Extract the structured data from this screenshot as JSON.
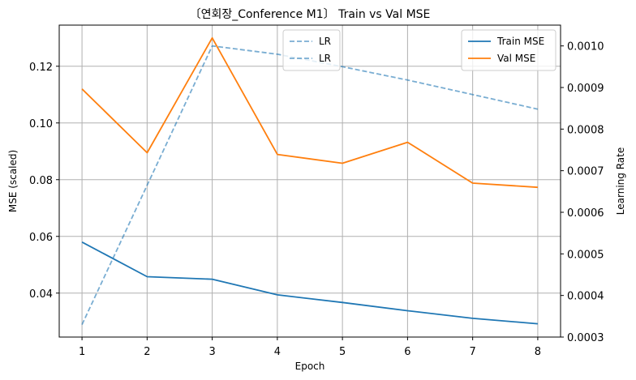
{
  "chart_data": {
    "type": "line",
    "title": "〔연회장_Conference M1〕 Train vs Val MSE",
    "xlabel": "Epoch",
    "ylabel": "MSE (scaled)",
    "y2label": "Learning Rate",
    "x": [
      1,
      2,
      3,
      4,
      5,
      6,
      7,
      8
    ],
    "xticks": [
      "1",
      "2",
      "3",
      "4",
      "5",
      "6",
      "7",
      "8"
    ],
    "xlim": [
      0.65,
      8.35
    ],
    "ylim": [
      0.0245,
      0.1345
    ],
    "yticks": [
      "0.04",
      "0.06",
      "0.08",
      "0.10",
      "0.12"
    ],
    "y2lim": [
      0.0003,
      0.00105
    ],
    "y2ticks": [
      "0.0003",
      "0.0004",
      "0.0005",
      "0.0006",
      "0.0007",
      "0.0008",
      "0.0009",
      "0.0010"
    ],
    "grid": true,
    "series": [
      {
        "name": "Train MSE",
        "axis": "left",
        "color": "#1f77b4",
        "style": "solid",
        "values": [
          0.058,
          0.0458,
          0.0449,
          0.0394,
          0.0367,
          0.0338,
          0.0311,
          0.0292
        ]
      },
      {
        "name": "Val MSE",
        "axis": "left",
        "color": "#ff7f0e",
        "style": "solid",
        "values": [
          0.112,
          0.0895,
          0.13,
          0.0889,
          0.0858,
          0.0932,
          0.0788,
          0.0773
        ]
      },
      {
        "name": "LR",
        "axis": "right",
        "color": "#1f77b4",
        "style": "dashed",
        "opacity": 0.6,
        "values": [
          0.00033,
          0.000665,
          0.001,
          0.00098,
          0.00095,
          0.000918,
          0.000883,
          0.000848
        ]
      }
    ],
    "legend_left": {
      "placement": "top-center",
      "entries": [
        "LR",
        "LR"
      ]
    },
    "legend_right": {
      "placement": "top-right",
      "entries": [
        "Train MSE",
        "Val MSE"
      ]
    }
  }
}
